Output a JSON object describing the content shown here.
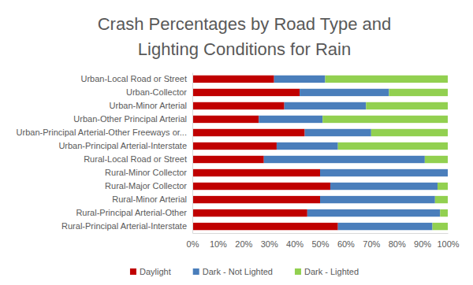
{
  "chart_data": {
    "type": "bar",
    "orientation": "horizontal",
    "stacked": true,
    "title": "Crash Percentages by Road Type and Lighting Conditions for Rain",
    "categories": [
      "Urban-Local Road or Street",
      "Urban-Collector",
      "Urban-Minor Arterial",
      "Urban-Other Principal Arterial",
      "Urban-Principal Arterial-Other Freeways or...",
      "Urban-Principal Arterial-Interstate",
      "Rural-Local Road or Street",
      "Rural-Minor Collector",
      "Rural-Major Collector",
      "Rural-Minor Arterial",
      "Rural-Principal Arterial-Other",
      "Rural-Principal Arterial-Interstate"
    ],
    "series": [
      {
        "name": "Daylight",
        "color": "#c00000",
        "values": [
          32,
          42,
          36,
          26,
          44,
          33,
          28,
          50,
          54,
          50,
          45,
          57
        ]
      },
      {
        "name": "Dark - Not Lighted",
        "color": "#4a7ebb",
        "values": [
          20,
          35,
          32,
          25,
          26,
          24,
          63,
          50,
          42,
          45,
          52,
          37
        ]
      },
      {
        "name": "Dark - Lighted",
        "color": "#92d050",
        "values": [
          48,
          23,
          32,
          49,
          30,
          43,
          9,
          0,
          4,
          5,
          3,
          6
        ]
      }
    ],
    "xlim": [
      0,
      100
    ],
    "xticks": [
      {
        "value": 0,
        "label": "0%"
      },
      {
        "value": 10,
        "label": "10%"
      },
      {
        "value": 20,
        "label": "20%"
      },
      {
        "value": 30,
        "label": "30%"
      },
      {
        "value": 40,
        "label": "40%"
      },
      {
        "value": 50,
        "label": "50%"
      },
      {
        "value": 60,
        "label": "60%"
      },
      {
        "value": 70,
        "label": "70%"
      },
      {
        "value": 80,
        "label": "80%"
      },
      {
        "value": 90,
        "label": "90%"
      },
      {
        "value": 100,
        "label": "100%"
      }
    ],
    "grid": false,
    "legend": "bottom"
  }
}
